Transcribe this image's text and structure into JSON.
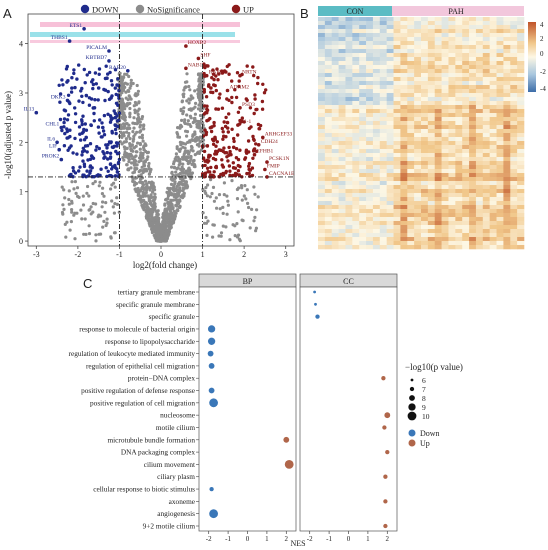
{
  "panels": {
    "a": "A",
    "b": "B",
    "c": "C"
  },
  "volcano": {
    "legend": [
      {
        "label": "DOWN",
        "color": "#1f2b8c"
      },
      {
        "label": "NoSignificance",
        "color": "#8c8c8c"
      },
      {
        "label": "UP",
        "color": "#8b1a1a"
      }
    ],
    "xlabel": "log2(fold change)",
    "ylabel": "-log10(adjusted p value)",
    "xticks": [
      -3,
      -2,
      -1,
      0,
      1,
      2,
      3
    ],
    "yticks": [
      0,
      1,
      2,
      3,
      4
    ],
    "gene_labels": [
      {
        "text": "ETS1",
        "x": -1.85,
        "y": 4.3,
        "side": "down"
      },
      {
        "text": "THBS1",
        "x": -2.2,
        "y": 4.05,
        "side": "down"
      },
      {
        "text": "PICALM",
        "x": -1.25,
        "y": 3.85,
        "side": "down"
      },
      {
        "text": "KBTBD7",
        "x": -1.25,
        "y": 3.65,
        "side": "down"
      },
      {
        "text": "RAB20",
        "x": -0.8,
        "y": 3.45,
        "side": "down"
      },
      {
        "text": "DKK3",
        "x": -2.25,
        "y": 2.85,
        "side": "down"
      },
      {
        "text": "IL13",
        "x": -3.0,
        "y": 2.6,
        "side": "down"
      },
      {
        "text": "CHL1",
        "x": -2.4,
        "y": 2.3,
        "side": "down"
      },
      {
        "text": "IL6",
        "x": -2.5,
        "y": 2.0,
        "side": "down"
      },
      {
        "text": "LIF",
        "x": -2.45,
        "y": 1.85,
        "side": "down"
      },
      {
        "text": "PROK2",
        "x": -2.4,
        "y": 1.65,
        "side": "down"
      },
      {
        "text": "HOXB2",
        "x": 0.6,
        "y": 3.95,
        "side": "up"
      },
      {
        "text": "SHF",
        "x": 0.9,
        "y": 3.7,
        "side": "up"
      },
      {
        "text": "NAB1",
        "x": 0.6,
        "y": 3.5,
        "side": "up"
      },
      {
        "text": "RAB6B",
        "x": 1.1,
        "y": 3.35,
        "side": "up"
      },
      {
        "text": "NRTN",
        "x": 1.9,
        "y": 3.35,
        "side": "up"
      },
      {
        "text": "ADAM2",
        "x": 1.6,
        "y": 3.05,
        "side": "up"
      },
      {
        "text": "PSD3",
        "x": 1.9,
        "y": 2.7,
        "side": "up"
      },
      {
        "text": "H1-1",
        "x": 1.85,
        "y": 2.35,
        "side": "up"
      },
      {
        "text": "ARHGEF33",
        "x": 2.45,
        "y": 2.1,
        "side": "up"
      },
      {
        "text": "CDH24",
        "x": 2.35,
        "y": 1.95,
        "side": "up"
      },
      {
        "text": "EFHB1",
        "x": 2.25,
        "y": 1.75,
        "side": "up"
      },
      {
        "text": "PCSK1N",
        "x": 2.55,
        "y": 1.6,
        "side": "up"
      },
      {
        "text": "FMIP",
        "x": 2.5,
        "y": 1.45,
        "side": "up"
      },
      {
        "text": "CACNA1E",
        "x": 2.55,
        "y": 1.3,
        "side": "up"
      }
    ]
  },
  "heatmap": {
    "groups": [
      {
        "label": "CON",
        "color": "#5bbcc4"
      },
      {
        "label": "PAH",
        "color": "#f2c7dc"
      }
    ],
    "scale_ticks": [
      "4",
      "2",
      "0",
      "-2",
      "-4"
    ]
  },
  "gsea": {
    "facets": [
      "BP",
      "CC"
    ],
    "xlabel": "NES",
    "facet_xticks": [
      [
        "-2",
        "-1",
        "0",
        "1",
        "2"
      ],
      [
        "-2",
        "-1",
        "0",
        "1",
        "2"
      ]
    ],
    "size_legend_title": "−log10(p value)",
    "size_legend": [
      "6",
      "7",
      "8",
      "9",
      "10"
    ],
    "color_legend": [
      {
        "label": "Down",
        "color": "#3a77b8"
      },
      {
        "label": "Up",
        "color": "#b0664a"
      }
    ]
  },
  "chart_data": [
    {
      "type": "scatter",
      "title": "",
      "xlabel": "log2(fold change)",
      "ylabel": "-log10(adjusted p value)",
      "xlim": [
        -3.2,
        3.2
      ],
      "ylim": [
        -0.1,
        4.6
      ],
      "thresholds": {
        "x": [
          -1,
          1
        ],
        "y": 1.3
      },
      "series": [
        {
          "name": "DOWN",
          "color": "#1f2b8c",
          "points": [
            [
              -1.85,
              4.3
            ],
            [
              -2.2,
              4.05
            ],
            [
              -1.25,
              3.85
            ],
            [
              -1.25,
              3.65
            ],
            [
              -0.8,
              3.45
            ],
            [
              -2.25,
              2.85
            ],
            [
              -3.0,
              2.6
            ],
            [
              -2.4,
              2.3
            ],
            [
              -2.5,
              2.0
            ],
            [
              -2.45,
              1.85
            ],
            [
              -2.4,
              1.65
            ],
            [
              -1.3,
              3.3
            ],
            [
              -1.5,
              3.1
            ],
            [
              -1.2,
              2.9
            ],
            [
              -1.6,
              2.7
            ],
            [
              -1.1,
              2.5
            ],
            [
              -1.4,
              2.3
            ],
            [
              -1.8,
              2.1
            ],
            [
              -1.15,
              1.9
            ],
            [
              -1.35,
              1.7
            ],
            [
              -1.7,
              1.5
            ],
            [
              -1.05,
              1.4
            ]
          ]
        },
        {
          "name": "NoSignificance",
          "color": "#8c8c8c",
          "points": [
            [
              0,
              0.05
            ],
            [
              -0.3,
              0.3
            ],
            [
              0.3,
              0.3
            ],
            [
              -0.5,
              0.7
            ],
            [
              0.5,
              0.7
            ],
            [
              -0.7,
              1.2
            ],
            [
              0.7,
              1.2
            ],
            [
              -0.8,
              1.8
            ],
            [
              0.8,
              1.8
            ],
            [
              -0.9,
              2.5
            ],
            [
              0.9,
              2.5
            ],
            [
              -0.6,
              3.0
            ],
            [
              0.6,
              3.0
            ],
            [
              -1.5,
              1.0
            ],
            [
              1.5,
              1.0
            ]
          ]
        },
        {
          "name": "UP",
          "color": "#8b1a1a",
          "points": [
            [
              0.6,
              3.95
            ],
            [
              0.9,
              3.7
            ],
            [
              0.6,
              3.5
            ],
            [
              1.1,
              3.35
            ],
            [
              1.9,
              3.35
            ],
            [
              1.6,
              3.05
            ],
            [
              1.9,
              2.7
            ],
            [
              1.85,
              2.35
            ],
            [
              2.45,
              2.1
            ],
            [
              2.35,
              1.95
            ],
            [
              2.25,
              1.75
            ],
            [
              2.55,
              1.6
            ],
            [
              2.5,
              1.45
            ],
            [
              2.55,
              1.3
            ],
            [
              1.2,
              3.1
            ],
            [
              1.4,
              2.9
            ],
            [
              1.1,
              2.6
            ],
            [
              1.6,
              2.4
            ],
            [
              1.3,
              2.1
            ],
            [
              1.75,
              1.9
            ],
            [
              1.15,
              1.7
            ],
            [
              1.5,
              1.5
            ]
          ]
        }
      ]
    },
    {
      "type": "heatmap",
      "title": "",
      "groups": [
        "CON",
        "PAH"
      ],
      "value_range": [
        -4,
        4
      ]
    },
    {
      "type": "scatter",
      "title": "",
      "xlabel": "NES",
      "terms": [
        "tertiary granule membrane",
        "specific granule membrane",
        "specific granule",
        "response to molecule of bacterial origin",
        "response to lipopolysaccharide",
        "regulation of leukocyte mediated immunity",
        "regulation of epithelial cell migration",
        "protein−DNA complex",
        "positive regulation of defense response",
        "positive regulation of cell migration",
        "nucleosome",
        "motile cilium",
        "microtubule bundle formation",
        "DNA packaging complex",
        "cilium movement",
        "ciliary plasm",
        "cellular response to biotic stimulus",
        "axoneme",
        "angiogenesis",
        "9+2 motile cilium"
      ],
      "points": [
        {
          "term": "tertiary granule membrane",
          "facet": "CC",
          "nes": -1.75,
          "logp": 6,
          "dir": "Down"
        },
        {
          "term": "specific granule membrane",
          "facet": "CC",
          "nes": -1.7,
          "logp": 6,
          "dir": "Down"
        },
        {
          "term": "specific granule",
          "facet": "CC",
          "nes": -1.6,
          "logp": 7,
          "dir": "Down"
        },
        {
          "term": "response to molecule of bacterial origin",
          "facet": "BP",
          "nes": -1.85,
          "logp": 9,
          "dir": "Down"
        },
        {
          "term": "response to lipopolysaccharide",
          "facet": "BP",
          "nes": -1.85,
          "logp": 9,
          "dir": "Down"
        },
        {
          "term": "regulation of leukocyte mediated immunity",
          "facet": "BP",
          "nes": -1.9,
          "logp": 8,
          "dir": "Down"
        },
        {
          "term": "regulation of epithelial cell migration",
          "facet": "BP",
          "nes": -1.85,
          "logp": 8,
          "dir": "Down"
        },
        {
          "term": "protein−DNA complex",
          "facet": "CC",
          "nes": 1.8,
          "logp": 7,
          "dir": "Up"
        },
        {
          "term": "positive regulation of defense response",
          "facet": "BP",
          "nes": -1.85,
          "logp": 8,
          "dir": "Down"
        },
        {
          "term": "positive regulation of cell migration",
          "facet": "BP",
          "nes": -1.75,
          "logp": 10,
          "dir": "Down"
        },
        {
          "term": "nucleosome",
          "facet": "CC",
          "nes": 2.0,
          "logp": 8,
          "dir": "Up"
        },
        {
          "term": "motile cilium",
          "facet": "CC",
          "nes": 1.85,
          "logp": 7,
          "dir": "Up"
        },
        {
          "term": "microtubule bundle formation",
          "facet": "BP",
          "nes": 2.0,
          "logp": 8,
          "dir": "Up"
        },
        {
          "term": "DNA packaging complex",
          "facet": "CC",
          "nes": 2.0,
          "logp": 7,
          "dir": "Up"
        },
        {
          "term": "cilium movement",
          "facet": "BP",
          "nes": 2.15,
          "logp": 10,
          "dir": "Up"
        },
        {
          "term": "ciliary plasm",
          "facet": "CC",
          "nes": 1.9,
          "logp": 7,
          "dir": "Up"
        },
        {
          "term": "cellular response to biotic stimulus",
          "facet": "BP",
          "nes": -1.85,
          "logp": 7,
          "dir": "Down"
        },
        {
          "term": "axoneme",
          "facet": "CC",
          "nes": 1.9,
          "logp": 7,
          "dir": "Up"
        },
        {
          "term": "angiogenesis",
          "facet": "BP",
          "nes": -1.75,
          "logp": 10,
          "dir": "Down"
        },
        {
          "term": "9+2 motile cilium",
          "facet": "CC",
          "nes": 1.9,
          "logp": 7,
          "dir": "Up"
        }
      ],
      "xlim": [
        -2.5,
        2.5
      ],
      "size_range": [
        6,
        10
      ]
    }
  ]
}
